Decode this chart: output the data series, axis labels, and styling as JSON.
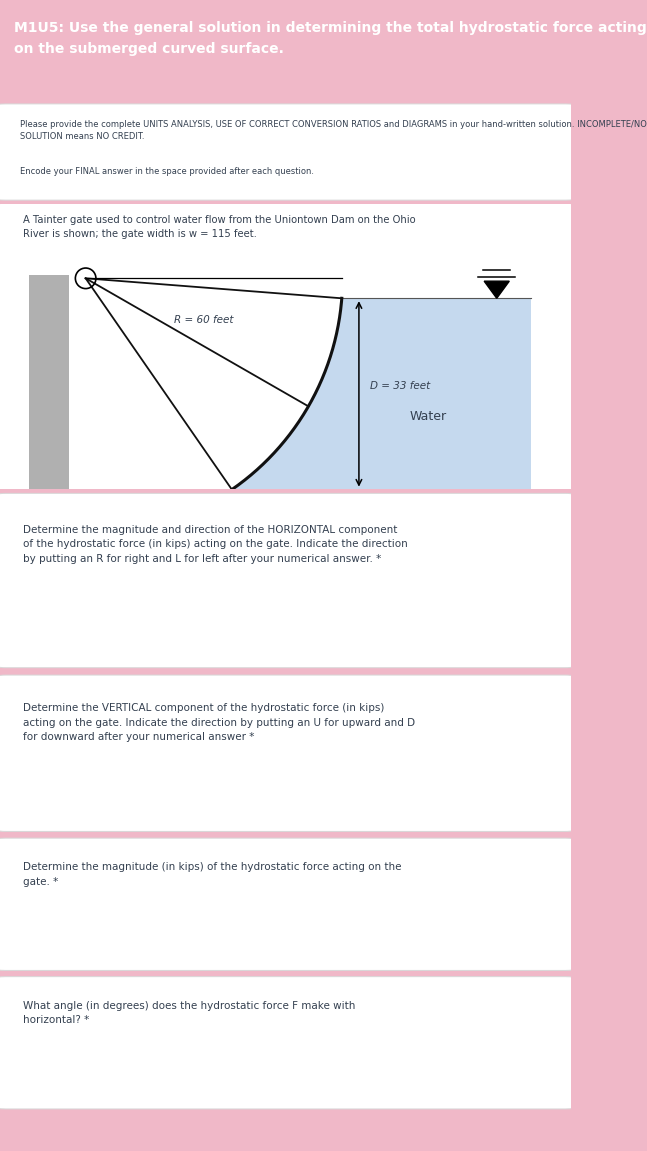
{
  "title_line1": "M1U5: Use the general solution in determining the total hydrostatic force acting",
  "title_line2": "on the submerged curved surface.",
  "title_bg": "#E8336A",
  "title_color": "#FFFFFF",
  "page_bg": "#F0B8C8",
  "card_bg": "#FFFFFF",
  "instruction_bold": "Please provide the complete UNITS ANALYSIS, USE OF CORRECT CONVERSION RATIOS and DIAGRAMS in your hand-written solution. INCOMPLETE/NO SOLUTION means NO CREDIT.",
  "encode_text": "Encode your FINAL answer in the space provided after each question.",
  "problem_text_line1": "A Tainter gate used to control water flow from the Uniontown Dam on the Ohio",
  "problem_text_line2": "River is shown; the gate width is w = 115 feet.",
  "R_label": "R = 60 feet",
  "D_label": "D = 33 feet",
  "Water_label": "Water",
  "q1_part1": "Determine the magnitude and direction of the ",
  "q1_highlight": "HORIZONTAL component",
  "q1_part2": "\nof the hydrostatic force (in kips) acting on the gate. Indicate the direction\nby putting an R for right and L for left after your numerical answer. *",
  "q2_part1": "Determine the ",
  "q2_highlight": "VERTICAL component",
  "q2_part2": " of the hydrostatic force (in kips)\nacting on the gate. Indicate the direction by putting an ",
  "q2_highlight2": "U",
  "q2_part3": " for upward and ",
  "q2_highlight3": "D",
  "q2_part4": "\nfor downward after your numerical answer *",
  "q3_part1": "Determine the magnitude (in kips) of the ",
  "q3_highlight": "hydrostatic force",
  "q3_part2": " acting on the\ngate. *",
  "q4_part1": "What angle (in degrees) does the hydrostatic force ",
  "q4_highlight": "F",
  "q4_part2": " make with\nhorizontal? *",
  "text_dark": "#344050",
  "text_highlight": "#E8336A",
  "water_color": "#C5D9EE",
  "gate_color": "#111111",
  "ground_color": "#B0B0B0",
  "wall_color": "#B0B0B0",
  "title_fontsize": 10.0,
  "body_fontsize": 7.2,
  "q_fontsize": 7.5
}
